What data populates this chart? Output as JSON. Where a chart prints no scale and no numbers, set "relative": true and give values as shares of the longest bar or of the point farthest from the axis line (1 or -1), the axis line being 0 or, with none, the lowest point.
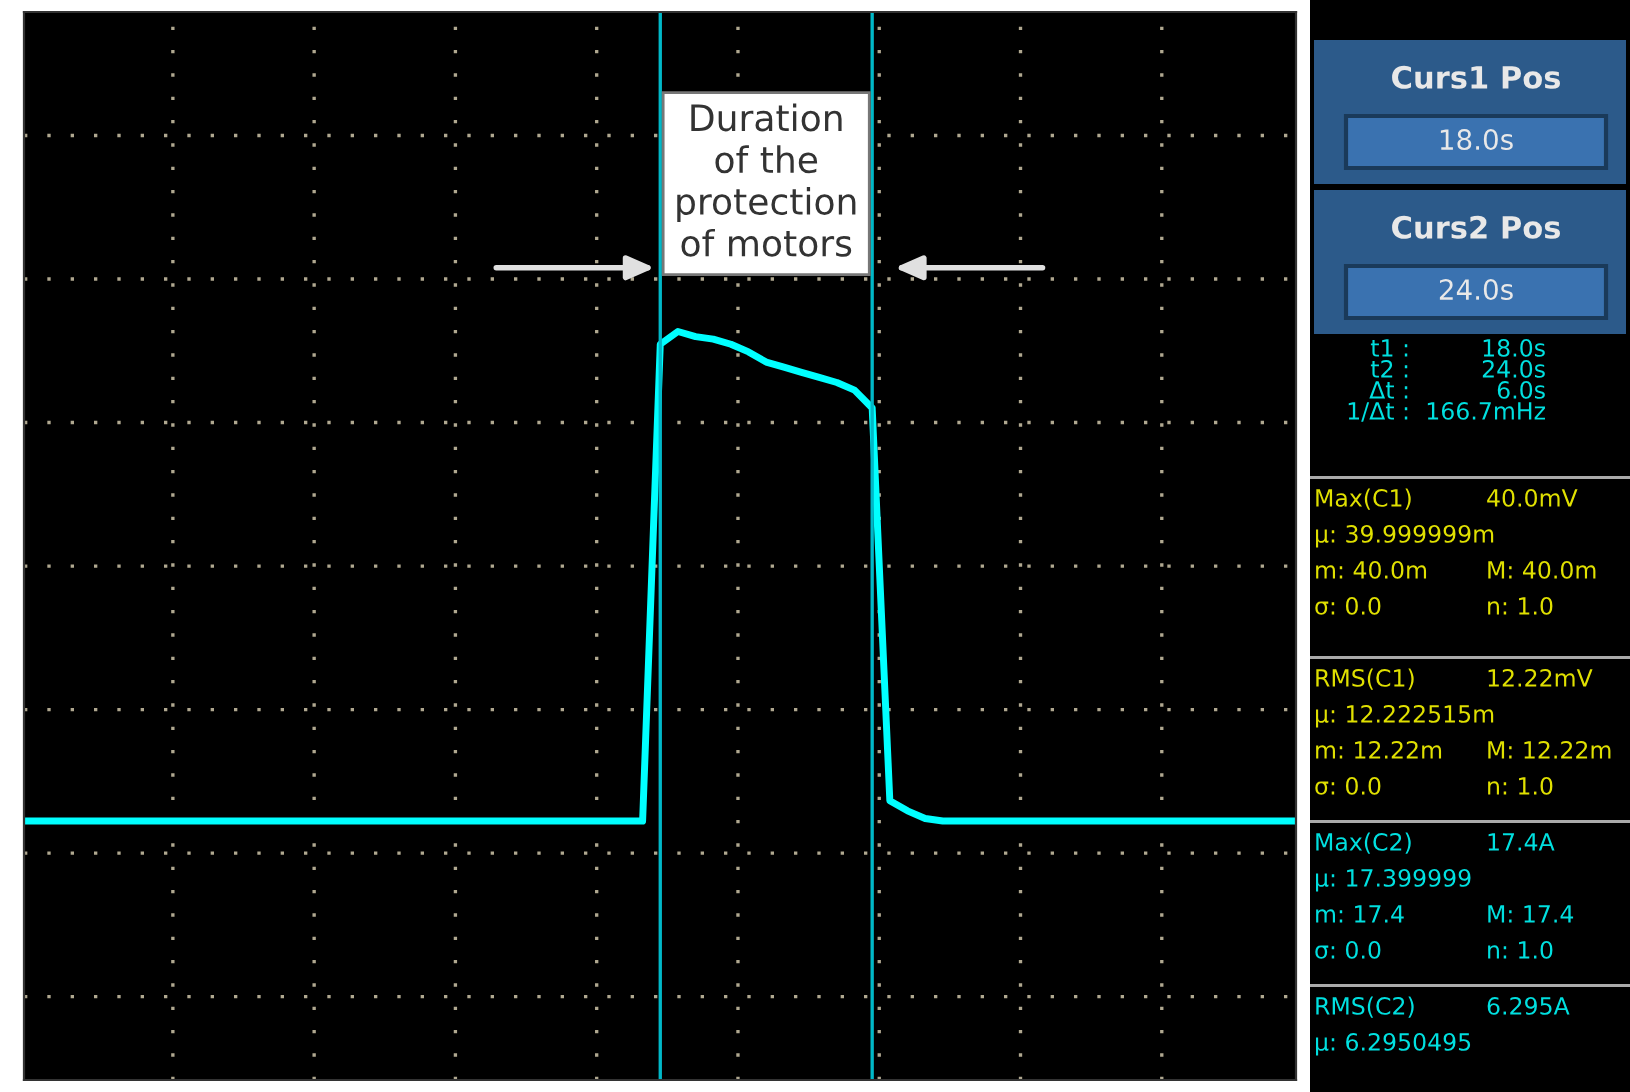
{
  "chart_data": {
    "type": "line",
    "relative": true,
    "categories": [
      null,
      null,
      null,
      null,
      null,
      null,
      null,
      null,
      null,
      null,
      null,
      null,
      null,
      null,
      null,
      null,
      null,
      null,
      null,
      null,
      null,
      null,
      null,
      null,
      null,
      null,
      null,
      null,
      null,
      null,
      null,
      null,
      null,
      null,
      null,
      null,
      null,
      null,
      null,
      null,
      null,
      null,
      null,
      null,
      null,
      null,
      null,
      null,
      null,
      null,
      null,
      null,
      null,
      null,
      null,
      null,
      null,
      null,
      null,
      null,
      null,
      null,
      null,
      null,
      null,
      null,
      null,
      null,
      null,
      null,
      null,
      null,
      null
    ],
    "series": [
      {
        "color": "#00ffff",
        "values": [
          -1,
          -1,
          -1,
          -1,
          -1,
          -1,
          -1,
          -1,
          -1,
          -1,
          -1,
          -1,
          -1,
          -1,
          -1,
          -1,
          -1,
          -1,
          -1,
          -1,
          -1,
          -1,
          -1,
          -1,
          -1,
          -1,
          -1,
          -1,
          -1,
          -1,
          -1,
          -1,
          -1,
          -1,
          -1,
          -1,
          0.87,
          0.92,
          0.9,
          0.89,
          0.87,
          0.84,
          0.8,
          0.78,
          0.76,
          0.74,
          0.72,
          0.69,
          0.62,
          -0.92,
          -0.96,
          -0.99,
          -1,
          -1,
          -1,
          -1,
          -1,
          -1,
          -1,
          -1,
          -1,
          -1,
          -1,
          -1,
          -1,
          -1,
          -1,
          -1,
          -1,
          -1,
          -1,
          -1,
          -1
        ]
      }
    ],
    "grid": true,
    "annotations": [
      "Duration\nof the\nprotection\nof motors",
      "Curs1 Pos",
      "18.0s",
      "Curs2 Pos",
      "24.0s",
      "t1 :",
      "18.0s",
      "t2 :",
      "24.0s",
      "Δt :",
      "6.0s",
      "1/Δt :",
      "166.7mHz",
      "Max(C1)",
      "40.0mV",
      "μ: 39.999999m",
      "m: 40.0m",
      "M: 40.0m",
      "σ: 0.0",
      "n: 1.0",
      "RMS(C1)",
      "12.22mV",
      "μ: 12.222515m",
      "m: 12.22m",
      "M: 12.22m",
      "σ: 0.0",
      "n: 1.0",
      "Max(C2)",
      "17.4A",
      "μ: 17.399999",
      "m: 17.4",
      "M: 17.4",
      "σ: 0.0",
      "n: 1.0",
      "RMS(C2)",
      "6.295A",
      "μ: 6.2950495"
    ]
  }
}
